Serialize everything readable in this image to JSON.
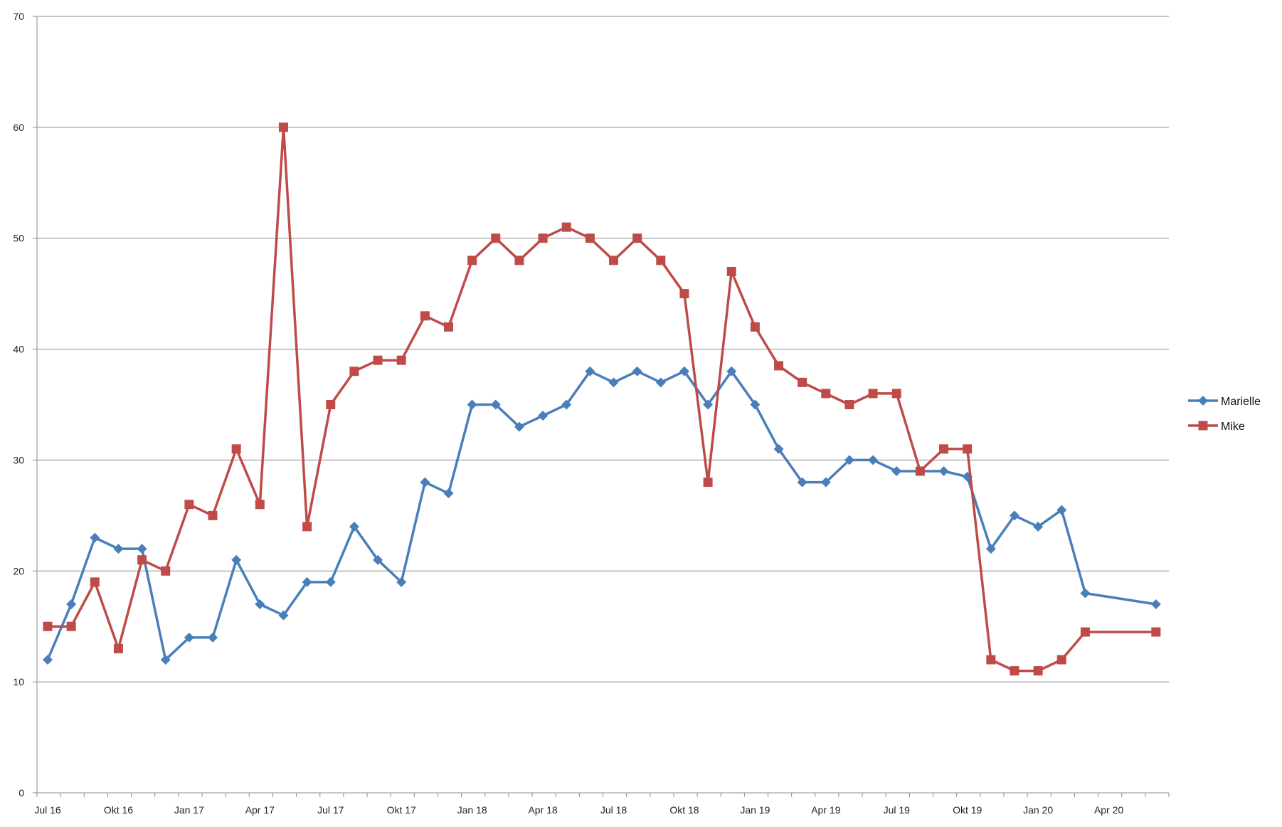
{
  "chart_data": {
    "type": "line",
    "ylim": [
      0,
      70
    ],
    "y_ticks": [
      0,
      10,
      20,
      30,
      40,
      50,
      60,
      70
    ],
    "x_tick_labels": [
      "Jul 16",
      "Okt 16",
      "Jan 17",
      "Apr 17",
      "Jul 17",
      "Okt 17",
      "Jan 18",
      "Apr 18",
      "Jul 18",
      "Okt 18",
      "Jan 19",
      "Apr 19",
      "Jul 19",
      "Okt 19",
      "Jan 20",
      "Apr 20"
    ],
    "grid": "horizontal",
    "legend_position": "right",
    "series": [
      {
        "name": "Marielle",
        "color": "#4A7EBB",
        "marker": "diamond",
        "points": [
          {
            "x": "2016-07-01",
            "y": 12
          },
          {
            "x": "2016-08-01",
            "y": 17
          },
          {
            "x": "2016-09-01",
            "y": 23
          },
          {
            "x": "2016-10-01",
            "y": 22
          },
          {
            "x": "2016-11-01",
            "y": 22
          },
          {
            "x": "2016-12-01",
            "y": 12
          },
          {
            "x": "2017-01-01",
            "y": 14
          },
          {
            "x": "2017-02-01",
            "y": 14
          },
          {
            "x": "2017-03-01",
            "y": 21
          },
          {
            "x": "2017-04-01",
            "y": 17
          },
          {
            "x": "2017-05-01",
            "y": 16
          },
          {
            "x": "2017-06-01",
            "y": 19
          },
          {
            "x": "2017-07-01",
            "y": 19
          },
          {
            "x": "2017-08-01",
            "y": 24
          },
          {
            "x": "2017-09-01",
            "y": 21
          },
          {
            "x": "2017-10-01",
            "y": 19
          },
          {
            "x": "2017-11-01",
            "y": 28
          },
          {
            "x": "2017-12-01",
            "y": 27
          },
          {
            "x": "2018-01-01",
            "y": 35
          },
          {
            "x": "2018-02-01",
            "y": 35
          },
          {
            "x": "2018-03-01",
            "y": 33
          },
          {
            "x": "2018-04-01",
            "y": 34
          },
          {
            "x": "2018-05-01",
            "y": 35
          },
          {
            "x": "2018-06-01",
            "y": 38
          },
          {
            "x": "2018-07-01",
            "y": 37
          },
          {
            "x": "2018-08-01",
            "y": 38
          },
          {
            "x": "2018-09-01",
            "y": 37
          },
          {
            "x": "2018-10-01",
            "y": 38
          },
          {
            "x": "2018-11-01",
            "y": 35
          },
          {
            "x": "2018-12-01",
            "y": 38
          },
          {
            "x": "2019-01-01",
            "y": 35
          },
          {
            "x": "2019-02-01",
            "y": 31
          },
          {
            "x": "2019-03-01",
            "y": 28
          },
          {
            "x": "2019-04-01",
            "y": 28
          },
          {
            "x": "2019-05-01",
            "y": 30
          },
          {
            "x": "2019-06-01",
            "y": 30
          },
          {
            "x": "2019-07-01",
            "y": 29
          },
          {
            "x": "2019-08-01",
            "y": 29
          },
          {
            "x": "2019-09-01",
            "y": 29
          },
          {
            "x": "2019-10-01",
            "y": 28.5
          },
          {
            "x": "2019-11-01",
            "y": 22
          },
          {
            "x": "2019-12-01",
            "y": 25
          },
          {
            "x": "2020-01-01",
            "y": 24
          },
          {
            "x": "2020-02-01",
            "y": 25.5
          },
          {
            "x": "2020-03-01",
            "y": 18
          },
          {
            "x": "2020-06-01",
            "y": 17
          }
        ]
      },
      {
        "name": "Mike",
        "color": "#BE4B48",
        "marker": "square",
        "points": [
          {
            "x": "2016-07-01",
            "y": 15
          },
          {
            "x": "2016-08-01",
            "y": 15
          },
          {
            "x": "2016-09-01",
            "y": 19
          },
          {
            "x": "2016-10-01",
            "y": 13
          },
          {
            "x": "2016-11-01",
            "y": 21
          },
          {
            "x": "2016-12-01",
            "y": 20
          },
          {
            "x": "2017-01-01",
            "y": 26
          },
          {
            "x": "2017-02-01",
            "y": 25
          },
          {
            "x": "2017-03-01",
            "y": 31
          },
          {
            "x": "2017-04-01",
            "y": 26
          },
          {
            "x": "2017-05-01",
            "y": 60
          },
          {
            "x": "2017-06-01",
            "y": 24
          },
          {
            "x": "2017-07-01",
            "y": 35
          },
          {
            "x": "2017-08-01",
            "y": 38
          },
          {
            "x": "2017-09-01",
            "y": 39
          },
          {
            "x": "2017-10-01",
            "y": 39
          },
          {
            "x": "2017-11-01",
            "y": 43
          },
          {
            "x": "2017-12-01",
            "y": 42
          },
          {
            "x": "2018-01-01",
            "y": 48
          },
          {
            "x": "2018-02-01",
            "y": 50
          },
          {
            "x": "2018-03-01",
            "y": 48
          },
          {
            "x": "2018-04-01",
            "y": 50
          },
          {
            "x": "2018-05-01",
            "y": 51
          },
          {
            "x": "2018-06-01",
            "y": 50
          },
          {
            "x": "2018-07-01",
            "y": 48
          },
          {
            "x": "2018-08-01",
            "y": 50
          },
          {
            "x": "2018-09-01",
            "y": 48
          },
          {
            "x": "2018-10-01",
            "y": 45
          },
          {
            "x": "2018-11-01",
            "y": 28
          },
          {
            "x": "2018-12-01",
            "y": 47
          },
          {
            "x": "2019-01-01",
            "y": 42
          },
          {
            "x": "2019-02-01",
            "y": 38.5
          },
          {
            "x": "2019-03-01",
            "y": 37
          },
          {
            "x": "2019-04-01",
            "y": 36
          },
          {
            "x": "2019-05-01",
            "y": 35
          },
          {
            "x": "2019-06-01",
            "y": 36
          },
          {
            "x": "2019-07-01",
            "y": 36
          },
          {
            "x": "2019-08-01",
            "y": 29
          },
          {
            "x": "2019-09-01",
            "y": 31
          },
          {
            "x": "2019-10-01",
            "y": 31
          },
          {
            "x": "2019-11-01",
            "y": 12
          },
          {
            "x": "2019-12-01",
            "y": 11
          },
          {
            "x": "2020-01-01",
            "y": 11
          },
          {
            "x": "2020-02-01",
            "y": 12
          },
          {
            "x": "2020-03-01",
            "y": 14.5
          },
          {
            "x": "2020-06-01",
            "y": 14.5
          }
        ]
      }
    ]
  }
}
